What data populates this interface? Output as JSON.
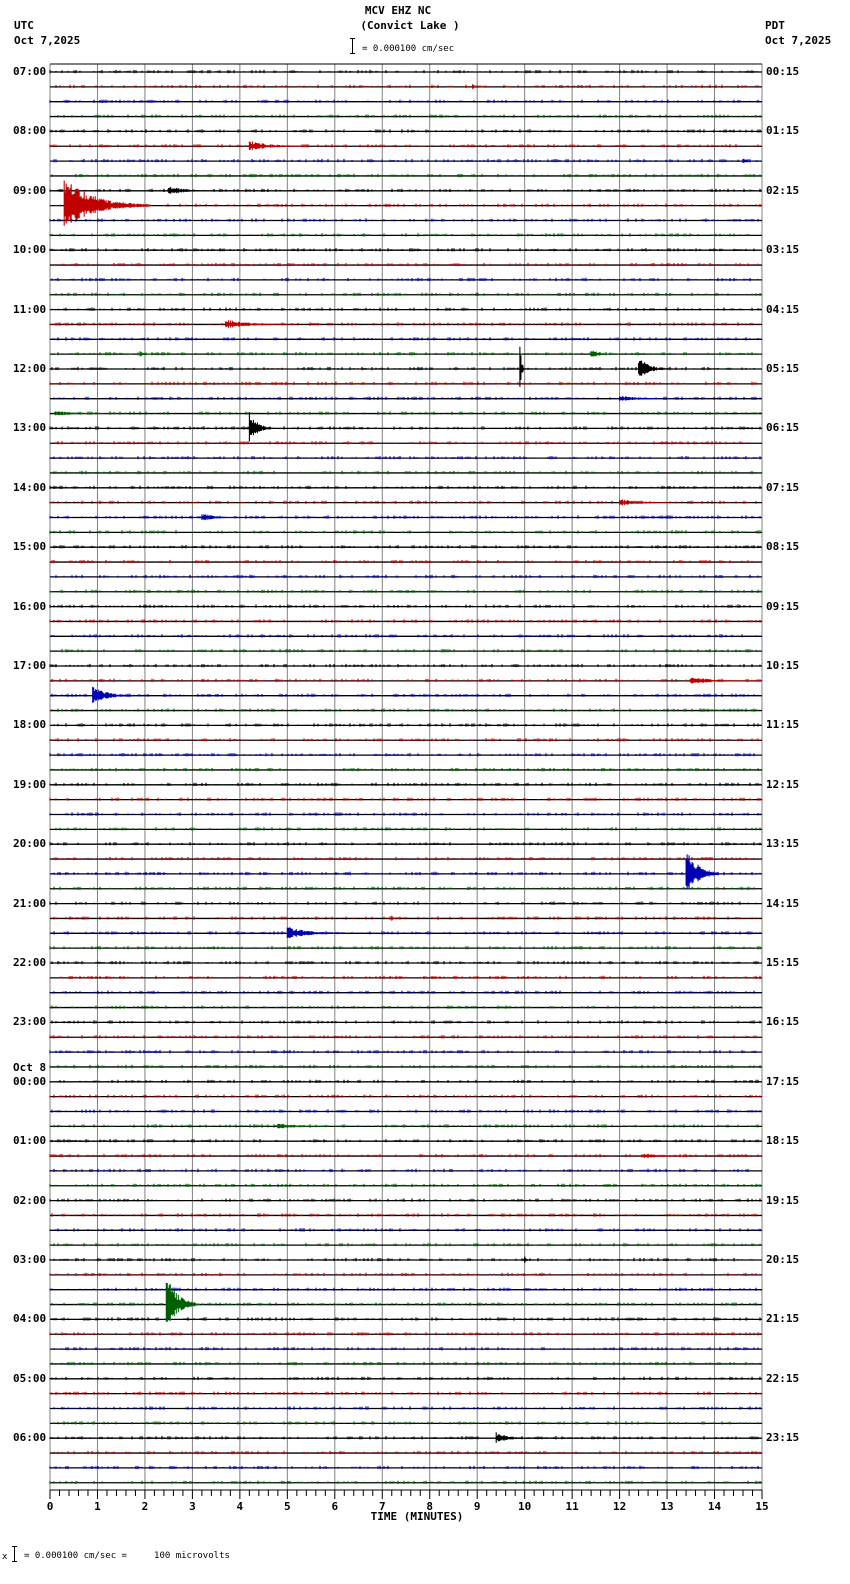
{
  "header": {
    "station": "MCV EHZ NC",
    "location": "(Convict Lake )",
    "left_tz": "UTC",
    "left_date": "Oct 7,2025",
    "right_tz": "PDT",
    "right_date": "Oct 7,2025",
    "scale_label": "= 0.000100 cm/sec"
  },
  "footer": {
    "scale_label": "= 0.000100 cm/sec =     100 microvolts",
    "prefix": "x"
  },
  "colors": {
    "trace_cycle": [
      "#000000",
      "#c00000",
      "#0000b0",
      "#006000"
    ],
    "grid": "#808080",
    "baseline": "#000000"
  },
  "chart_data": {
    "type": "line",
    "title": "MCV EHZ NC (Convict Lake )",
    "subtitle": "= 0.000100 cm/sec",
    "xlabel": "TIME (MINUTES)",
    "ylabel": "",
    "xlim": [
      0,
      15
    ],
    "x_ticks": [
      "0",
      "1",
      "2",
      "3",
      "4",
      "5",
      "6",
      "7",
      "8",
      "9",
      "10",
      "11",
      "12",
      "13",
      "14",
      "15"
    ],
    "grid": true,
    "traces_per_hour": 4,
    "minutes_per_trace": 15,
    "left_labels": [
      {
        "row": 0,
        "text": "07:00"
      },
      {
        "row": 4,
        "text": "08:00"
      },
      {
        "row": 8,
        "text": "09:00"
      },
      {
        "row": 12,
        "text": "10:00"
      },
      {
        "row": 16,
        "text": "11:00"
      },
      {
        "row": 20,
        "text": "12:00"
      },
      {
        "row": 24,
        "text": "13:00"
      },
      {
        "row": 28,
        "text": "14:00"
      },
      {
        "row": 32,
        "text": "15:00"
      },
      {
        "row": 36,
        "text": "16:00"
      },
      {
        "row": 40,
        "text": "17:00"
      },
      {
        "row": 44,
        "text": "18:00"
      },
      {
        "row": 48,
        "text": "19:00"
      },
      {
        "row": 52,
        "text": "20:00"
      },
      {
        "row": 56,
        "text": "21:00"
      },
      {
        "row": 60,
        "text": "22:00"
      },
      {
        "row": 64,
        "text": "23:00"
      },
      {
        "row": 68,
        "text": "00:00",
        "date": "Oct 8"
      },
      {
        "row": 72,
        "text": "01:00"
      },
      {
        "row": 76,
        "text": "02:00"
      },
      {
        "row": 80,
        "text": "03:00"
      },
      {
        "row": 84,
        "text": "04:00"
      },
      {
        "row": 88,
        "text": "05:00"
      },
      {
        "row": 92,
        "text": "06:00"
      }
    ],
    "right_labels": [
      {
        "row": 0,
        "text": "00:15"
      },
      {
        "row": 4,
        "text": "01:15"
      },
      {
        "row": 8,
        "text": "02:15"
      },
      {
        "row": 12,
        "text": "03:15"
      },
      {
        "row": 16,
        "text": "04:15"
      },
      {
        "row": 20,
        "text": "05:15"
      },
      {
        "row": 24,
        "text": "06:15"
      },
      {
        "row": 28,
        "text": "07:15"
      },
      {
        "row": 32,
        "text": "08:15"
      },
      {
        "row": 36,
        "text": "09:15"
      },
      {
        "row": 40,
        "text": "10:15"
      },
      {
        "row": 44,
        "text": "11:15"
      },
      {
        "row": 48,
        "text": "12:15"
      },
      {
        "row": 52,
        "text": "13:15"
      },
      {
        "row": 56,
        "text": "14:15"
      },
      {
        "row": 60,
        "text": "15:15"
      },
      {
        "row": 64,
        "text": "16:15"
      },
      {
        "row": 68,
        "text": "17:15"
      },
      {
        "row": 72,
        "text": "18:15"
      },
      {
        "row": 76,
        "text": "19:15"
      },
      {
        "row": 80,
        "text": "20:15"
      },
      {
        "row": 84,
        "text": "21:15"
      },
      {
        "row": 88,
        "text": "22:15"
      },
      {
        "row": 92,
        "text": "23:15"
      }
    ],
    "row_count": 96,
    "events": [
      {
        "row": 1,
        "minute": 8.9,
        "amp": 4,
        "dur": 0.1
      },
      {
        "row": 5,
        "minute": 4.2,
        "amp": 6,
        "dur": 1.2
      },
      {
        "row": 6,
        "minute": 14.6,
        "amp": 3,
        "dur": 0.3
      },
      {
        "row": 8,
        "minute": 2.5,
        "amp": 5,
        "dur": 1.0
      },
      {
        "row": 9,
        "minute": 0.3,
        "amp": 28,
        "dur": 1.8
      },
      {
        "row": 17,
        "minute": 3.7,
        "amp": 5,
        "dur": 1.5
      },
      {
        "row": 19,
        "minute": 1.9,
        "amp": 3,
        "dur": 0.3
      },
      {
        "row": 19,
        "minute": 11.4,
        "amp": 5,
        "dur": 0.5
      },
      {
        "row": 20,
        "minute": 12.4,
        "amp": 14,
        "dur": 0.6
      },
      {
        "row": 20,
        "minute": 9.9,
        "amp": 30,
        "dur": 0.1
      },
      {
        "row": 22,
        "minute": 12.0,
        "amp": 3,
        "dur": 1.5
      },
      {
        "row": 23,
        "minute": 0.1,
        "amp": 3,
        "dur": 1.5
      },
      {
        "row": 24,
        "minute": 4.2,
        "amp": 20,
        "dur": 0.5
      },
      {
        "row": 29,
        "minute": 12.0,
        "amp": 4,
        "dur": 1.2
      },
      {
        "row": 30,
        "minute": 3.2,
        "amp": 4,
        "dur": 1.0
      },
      {
        "row": 42,
        "minute": 0.9,
        "amp": 9,
        "dur": 1.0
      },
      {
        "row": 41,
        "minute": 13.5,
        "amp": 4,
        "dur": 1.5
      },
      {
        "row": 54,
        "minute": 13.4,
        "amp": 28,
        "dur": 0.7
      },
      {
        "row": 57,
        "minute": 7.2,
        "amp": 3,
        "dur": 0.1
      },
      {
        "row": 58,
        "minute": 5.0,
        "amp": 7,
        "dur": 1.3
      },
      {
        "row": 71,
        "minute": 4.8,
        "amp": 3,
        "dur": 1.4
      },
      {
        "row": 73,
        "minute": 12.5,
        "amp": 3,
        "dur": 1.0
      },
      {
        "row": 80,
        "minute": 10.0,
        "amp": 5,
        "dur": 0.1
      },
      {
        "row": 83,
        "minute": 2.45,
        "amp": 30,
        "dur": 0.7
      },
      {
        "row": 92,
        "minute": 9.4,
        "amp": 6,
        "dur": 0.8
      }
    ]
  }
}
